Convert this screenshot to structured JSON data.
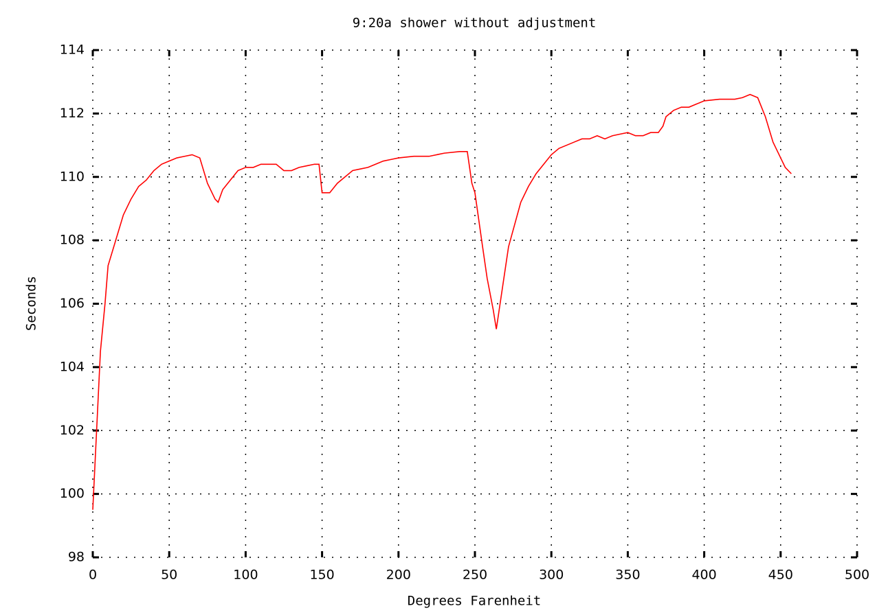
{
  "chart_data": {
    "type": "line",
    "title": "9:20a shower without adjustment",
    "xlabel": "Degrees Farenheit",
    "ylabel": "Seconds",
    "xlim": [
      0,
      500
    ],
    "xticks": [
      0,
      50,
      100,
      150,
      200,
      250,
      300,
      350,
      400,
      450,
      500
    ],
    "ylim": [
      98,
      114
    ],
    "yticks": [
      98,
      100,
      102,
      104,
      106,
      108,
      110,
      112,
      114
    ],
    "grid": true,
    "series": [
      {
        "color": "#ff0000",
        "x": [
          0,
          1,
          3,
          5,
          8,
          10,
          15,
          20,
          25,
          30,
          35,
          40,
          45,
          50,
          55,
          60,
          65,
          70,
          75,
          80,
          82,
          85,
          90,
          95,
          100,
          105,
          110,
          115,
          120,
          125,
          130,
          135,
          140,
          145,
          148,
          150,
          155,
          160,
          165,
          170,
          175,
          180,
          185,
          190,
          195,
          200,
          210,
          220,
          230,
          240,
          245,
          248,
          250,
          255,
          258,
          262,
          264,
          268,
          272,
          276,
          280,
          285,
          290,
          295,
          300,
          305,
          310,
          315,
          320,
          325,
          330,
          335,
          340,
          345,
          350,
          355,
          360,
          365,
          370,
          373,
          375,
          380,
          385,
          390,
          395,
          400,
          410,
          420,
          425,
          430,
          435,
          440,
          445,
          450,
          453,
          457
        ],
        "values": [
          99.5,
          100.5,
          102.5,
          104.5,
          106,
          107.2,
          108,
          108.8,
          109.3,
          109.7,
          109.9,
          110.2,
          110.4,
          110.5,
          110.6,
          110.65,
          110.7,
          110.6,
          109.8,
          109.3,
          109.2,
          109.6,
          109.9,
          110.2,
          110.3,
          110.3,
          110.4,
          110.4,
          110.4,
          110.2,
          110.2,
          110.3,
          110.35,
          110.4,
          110.4,
          109.5,
          109.5,
          109.8,
          110,
          110.2,
          110.25,
          110.3,
          110.4,
          110.5,
          110.55,
          110.6,
          110.65,
          110.65,
          110.75,
          110.8,
          110.8,
          109.8,
          109.5,
          107.8,
          106.8,
          105.8,
          105.2,
          106.5,
          107.8,
          108.5,
          109.2,
          109.7,
          110.1,
          110.4,
          110.7,
          110.9,
          111,
          111.1,
          111.2,
          111.2,
          111.3,
          111.2,
          111.3,
          111.35,
          111.4,
          111.3,
          111.3,
          111.4,
          111.4,
          111.6,
          111.9,
          112.1,
          112.2,
          112.2,
          112.3,
          112.4,
          112.45,
          112.45,
          112.5,
          112.6,
          112.5,
          111.9,
          111.1,
          110.6,
          110.3,
          110.1
        ]
      }
    ]
  }
}
